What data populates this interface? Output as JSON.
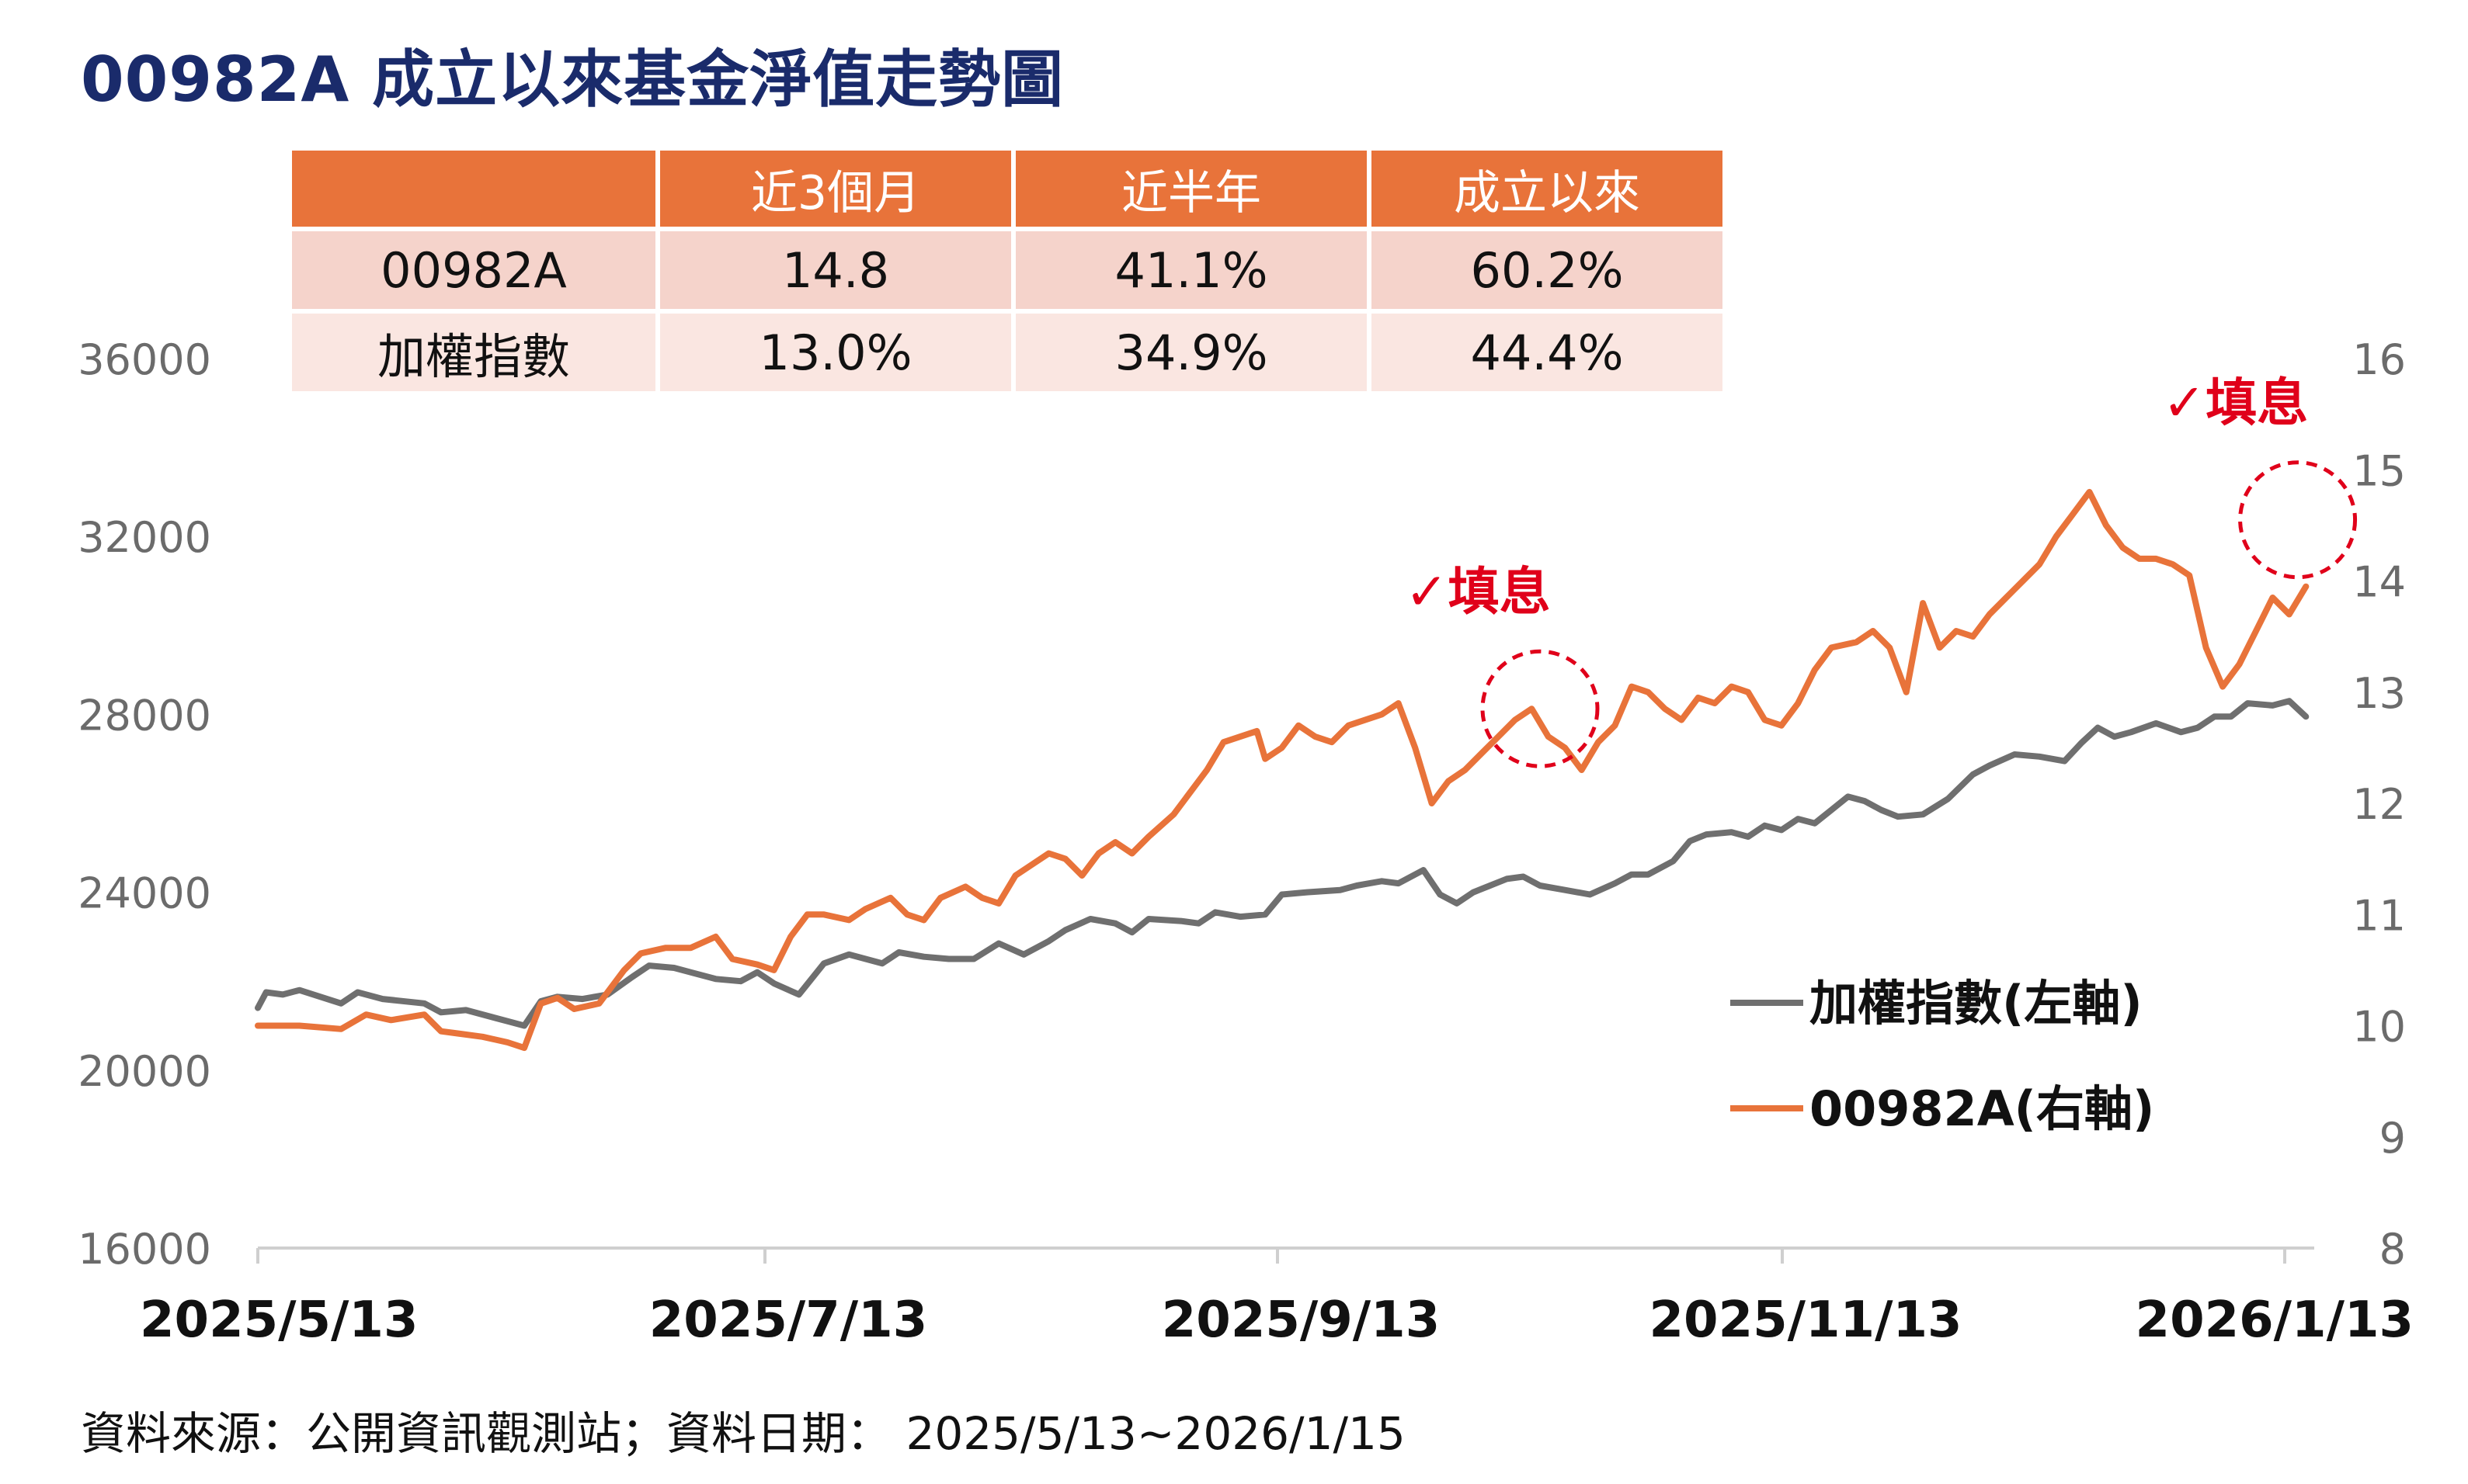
{
  "title": "00982A 成立以來基金淨值走勢圖",
  "table": {
    "headers": [
      "",
      "近3個月",
      "近半年",
      "成立以來"
    ],
    "rows": [
      {
        "name": "00982A",
        "m3": "14.8",
        "m6": "41.1%",
        "since": "60.2%"
      },
      {
        "name": "加權指數",
        "m3": "13.0%",
        "m6": "34.9%",
        "since": "44.4%"
      }
    ]
  },
  "footer": "資料來源：公開資訊觀測站；資料日期： 2025/5/13~2026/1/15",
  "colors": {
    "title": "#1a2b6b",
    "header_bg": "#e8733a",
    "row1_bg": "#f5d3cb",
    "row2_bg": "#fae6e1",
    "orange": "#e8733a",
    "gray": "#6f6f6f",
    "annotation": "#e0001a"
  },
  "chart_data": {
    "type": "line",
    "x_ticks": [
      "2025/5/13",
      "2025/7/13",
      "2025/9/13",
      "2025/11/13",
      "2026/1/13"
    ],
    "y_left": {
      "ticks": [
        16000,
        20000,
        24000,
        28000,
        32000,
        36000
      ],
      "range": [
        16000,
        36000
      ]
    },
    "y_right": {
      "ticks": [
        8,
        9,
        10,
        11,
        12,
        13,
        14,
        15,
        16
      ],
      "range": [
        8,
        16
      ]
    },
    "x_range": [
      0,
      247
    ],
    "series": [
      {
        "name": "加權指數(左軸)",
        "axis": "left",
        "color": "#6f6f6f",
        "points": [
          [
            0,
            21400
          ],
          [
            1,
            21750
          ],
          [
            3,
            21700
          ],
          [
            5,
            21800
          ],
          [
            10,
            21500
          ],
          [
            12,
            21750
          ],
          [
            15,
            21600
          ],
          [
            20,
            21500
          ],
          [
            22,
            21300
          ],
          [
            25,
            21350
          ],
          [
            30,
            21100
          ],
          [
            32,
            21000
          ],
          [
            34,
            21550
          ],
          [
            36,
            21650
          ],
          [
            39,
            21600
          ],
          [
            42,
            21700
          ],
          [
            45,
            22100
          ],
          [
            47,
            22350
          ],
          [
            50,
            22300
          ],
          [
            55,
            22050
          ],
          [
            58,
            22000
          ],
          [
            60,
            22200
          ],
          [
            62,
            21950
          ],
          [
            65,
            21700
          ],
          [
            68,
            22400
          ],
          [
            71,
            22600
          ],
          [
            75,
            22400
          ],
          [
            77,
            22650
          ],
          [
            80,
            22550
          ],
          [
            83,
            22500
          ],
          [
            86,
            22500
          ],
          [
            89,
            22850
          ],
          [
            92,
            22600
          ],
          [
            95,
            22900
          ],
          [
            97,
            23150
          ],
          [
            100,
            23400
          ],
          [
            103,
            23300
          ],
          [
            105,
            23100
          ],
          [
            107,
            23400
          ],
          [
            111,
            23350
          ],
          [
            113,
            23300
          ],
          [
            115,
            23550
          ],
          [
            118,
            23450
          ],
          [
            121,
            23500
          ],
          [
            123,
            23950
          ],
          [
            126,
            24000
          ],
          [
            130,
            24050
          ],
          [
            132,
            24150
          ],
          [
            135,
            24250
          ],
          [
            137,
            24200
          ],
          [
            140,
            24500
          ],
          [
            142,
            23950
          ],
          [
            144,
            23750
          ],
          [
            146,
            24000
          ],
          [
            148,
            24150
          ],
          [
            150,
            24300
          ],
          [
            152,
            24350
          ],
          [
            154,
            24150
          ],
          [
            157,
            24050
          ],
          [
            160,
            23950
          ],
          [
            163,
            24200
          ],
          [
            165,
            24400
          ],
          [
            167,
            24400
          ],
          [
            170,
            24700
          ],
          [
            172,
            25150
          ],
          [
            174,
            25300
          ],
          [
            177,
            25350
          ],
          [
            179,
            25250
          ],
          [
            181,
            25500
          ],
          [
            183,
            25400
          ],
          [
            185,
            25650
          ],
          [
            187,
            25550
          ],
          [
            189,
            25850
          ],
          [
            191,
            26150
          ],
          [
            193,
            26050
          ],
          [
            195,
            25850
          ],
          [
            197,
            25700
          ],
          [
            200,
            25750
          ],
          [
            203,
            26100
          ],
          [
            206,
            26650
          ],
          [
            208,
            26850
          ],
          [
            211,
            27100
          ],
          [
            214,
            27050
          ],
          [
            217,
            26950
          ],
          [
            219,
            27350
          ],
          [
            221,
            27700
          ],
          [
            223,
            27500
          ],
          [
            225,
            27600
          ],
          [
            228,
            27800
          ],
          [
            231,
            27600
          ],
          [
            233,
            27700
          ],
          [
            235,
            27950
          ],
          [
            237,
            27950
          ],
          [
            239,
            28250
          ],
          [
            242,
            28200
          ],
          [
            244,
            28300
          ],
          [
            246,
            27950
          ]
        ]
      },
      {
        "name": "00982A(右軸)",
        "axis": "right",
        "color": "#e8733a",
        "points": [
          [
            0,
            10.0
          ],
          [
            5,
            10.0
          ],
          [
            10,
            9.97
          ],
          [
            13,
            10.1
          ],
          [
            16,
            10.05
          ],
          [
            20,
            10.1
          ],
          [
            22,
            9.95
          ],
          [
            24,
            9.93
          ],
          [
            27,
            9.9
          ],
          [
            30,
            9.85
          ],
          [
            32,
            9.8
          ],
          [
            34,
            10.2
          ],
          [
            36,
            10.25
          ],
          [
            38,
            10.15
          ],
          [
            41,
            10.2
          ],
          [
            44,
            10.5
          ],
          [
            46,
            10.65
          ],
          [
            49,
            10.7
          ],
          [
            52,
            10.7
          ],
          [
            55,
            10.8
          ],
          [
            57,
            10.6
          ],
          [
            60,
            10.55
          ],
          [
            62,
            10.5
          ],
          [
            64,
            10.8
          ],
          [
            66,
            11.0
          ],
          [
            68,
            11.0
          ],
          [
            71,
            10.95
          ],
          [
            73,
            11.05
          ],
          [
            76,
            11.15
          ],
          [
            78,
            11.0
          ],
          [
            80,
            10.95
          ],
          [
            82,
            11.15
          ],
          [
            85,
            11.25
          ],
          [
            87,
            11.15
          ],
          [
            89,
            11.1
          ],
          [
            91,
            11.35
          ],
          [
            93,
            11.45
          ],
          [
            95,
            11.55
          ],
          [
            97,
            11.5
          ],
          [
            99,
            11.35
          ],
          [
            101,
            11.55
          ],
          [
            103,
            11.65
          ],
          [
            105,
            11.55
          ],
          [
            107,
            11.7
          ],
          [
            110,
            11.9
          ],
          [
            112,
            12.1
          ],
          [
            114,
            12.3
          ],
          [
            116,
            12.55
          ],
          [
            118,
            12.6
          ],
          [
            120,
            12.65
          ],
          [
            121,
            12.4
          ],
          [
            123,
            12.5
          ],
          [
            125,
            12.7
          ],
          [
            127,
            12.6
          ],
          [
            129,
            12.55
          ],
          [
            131,
            12.7
          ],
          [
            133,
            12.75
          ],
          [
            135,
            12.8
          ],
          [
            137,
            12.9
          ],
          [
            139,
            12.5
          ],
          [
            141,
            12.0
          ],
          [
            143,
            12.2
          ],
          [
            145,
            12.3
          ],
          [
            147,
            12.45
          ],
          [
            149,
            12.6
          ],
          [
            151,
            12.75
          ],
          [
            153,
            12.85
          ],
          [
            155,
            12.6
          ],
          [
            157,
            12.5
          ],
          [
            159,
            12.3
          ],
          [
            161,
            12.55
          ],
          [
            163,
            12.7
          ],
          [
            165,
            13.05
          ],
          [
            167,
            13.0
          ],
          [
            169,
            12.85
          ],
          [
            171,
            12.75
          ],
          [
            173,
            12.95
          ],
          [
            175,
            12.9
          ],
          [
            177,
            13.05
          ],
          [
            179,
            13.0
          ],
          [
            181,
            12.75
          ],
          [
            183,
            12.7
          ],
          [
            185,
            12.9
          ],
          [
            187,
            13.2
          ],
          [
            189,
            13.4
          ],
          [
            192,
            13.45
          ],
          [
            194,
            13.55
          ],
          [
            196,
            13.4
          ],
          [
            198,
            13.0
          ],
          [
            200,
            13.8
          ],
          [
            202,
            13.4
          ],
          [
            204,
            13.55
          ],
          [
            206,
            13.5
          ],
          [
            208,
            13.7
          ],
          [
            210,
            13.85
          ],
          [
            212,
            14.0
          ],
          [
            214,
            14.15
          ],
          [
            216,
            14.4
          ],
          [
            218,
            14.6
          ],
          [
            220,
            14.8
          ],
          [
            222,
            14.5
          ],
          [
            224,
            14.3
          ],
          [
            226,
            14.2
          ],
          [
            228,
            14.2
          ],
          [
            230,
            14.15
          ],
          [
            232,
            14.05
          ],
          [
            234,
            13.4
          ],
          [
            236,
            13.05
          ],
          [
            238,
            13.25
          ],
          [
            240,
            13.55
          ],
          [
            242,
            13.85
          ],
          [
            244,
            13.7
          ],
          [
            246,
            13.95
          ]
        ]
      }
    ],
    "annotations": [
      {
        "label": "✓填息",
        "series": 1,
        "x": 154,
        "y": 12.85
      },
      {
        "label": "✓填息",
        "series": 1,
        "x": 245,
        "y": 14.55
      }
    ],
    "legend": {
      "position": "bottom-right",
      "entries": [
        "加權指數(左軸)",
        "00982A(右軸)"
      ]
    }
  }
}
